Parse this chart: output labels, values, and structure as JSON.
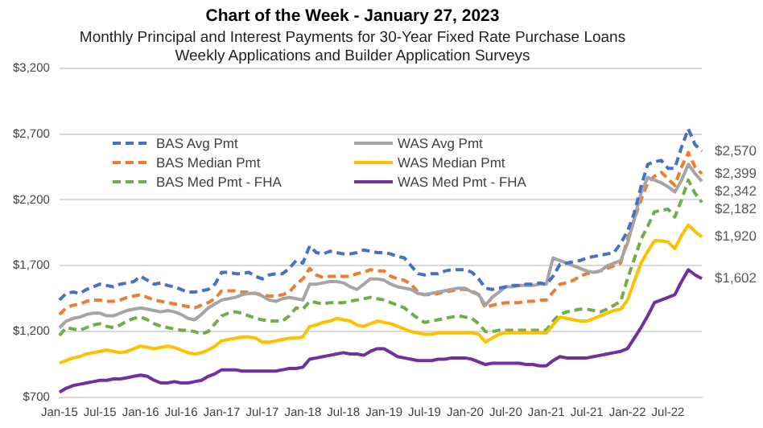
{
  "chart_data": {
    "type": "line",
    "title": "Chart of the Week - January 27, 2023",
    "subtitle": "Monthly Principal and Interest Payments for 30-Year Fixed Rate Purchase Loans\nWeekly Applications and Builder Application Surveys",
    "categories": [
      "Jan-15",
      null,
      null,
      null,
      null,
      null,
      "Jul-15",
      null,
      null,
      null,
      null,
      null,
      "Jan-16",
      null,
      null,
      null,
      null,
      null,
      "Jul-16",
      null,
      null,
      null,
      null,
      null,
      "Jan-17",
      null,
      null,
      null,
      null,
      null,
      "Jul-17",
      null,
      null,
      null,
      null,
      null,
      "Jan-18",
      null,
      null,
      null,
      null,
      null,
      "Jul-18",
      null,
      null,
      null,
      null,
      null,
      "Jan-19",
      null,
      null,
      null,
      null,
      null,
      "Jul-19",
      null,
      null,
      null,
      null,
      null,
      "Jan-20",
      null,
      null,
      null,
      null,
      null,
      "Jul-20",
      null,
      null,
      null,
      null,
      null,
      "Jan-21",
      null,
      null,
      null,
      null,
      null,
      "Jul-21",
      null,
      null,
      null,
      null,
      null,
      "Jan-22",
      null,
      null,
      null,
      null,
      null,
      "Jul-22",
      null,
      null,
      null,
      null,
      null
    ],
    "ylim": [
      700,
      3200
    ],
    "yticks": [
      {
        "value": 700,
        "label": "$700"
      },
      {
        "value": 1200,
        "label": "$1,200"
      },
      {
        "value": 1700,
        "label": "$1,700"
      },
      {
        "value": 2200,
        "label": "$2,200"
      },
      {
        "value": 2700,
        "label": "$2,700"
      },
      {
        "value": 3200,
        "label": "$3,200"
      }
    ],
    "grid": "y",
    "legend": "top",
    "marker": "none",
    "series": [
      {
        "name": "BAS Avg Pmt",
        "color": "#4472c4",
        "line_style": "dashed",
        "values": [
          1440,
          1490,
          1500,
          1490,
          1520,
          1540,
          1560,
          1550,
          1540,
          1560,
          1570,
          1580,
          1620,
          1590,
          1560,
          1570,
          1550,
          1540,
          1520,
          1500,
          1500,
          1510,
          1520,
          1560,
          1650,
          1650,
          1640,
          1640,
          1650,
          1620,
          1600,
          1630,
          1640,
          1640,
          1680,
          1740,
          1720,
          1850,
          1800,
          1790,
          1810,
          1800,
          1790,
          1790,
          1800,
          1820,
          1810,
          1800,
          1800,
          1790,
          1770,
          1760,
          1700,
          1640,
          1630,
          1640,
          1640,
          1660,
          1670,
          1670,
          1670,
          1650,
          1600,
          1530,
          1520,
          1530,
          1540,
          1550,
          1550,
          1560,
          1560,
          1570,
          1560,
          1620,
          1710,
          1720,
          1730,
          1740,
          1760,
          1770,
          1780,
          1790,
          1800,
          1870,
          1960,
          2100,
          2300,
          2470,
          2490,
          2500,
          2440,
          2440,
          2600,
          2740,
          2620,
          2570
        ],
        "value_labels": [
          null,
          null,
          null,
          null,
          null,
          null,
          null,
          null,
          null,
          null,
          null,
          null,
          null,
          null,
          null,
          null,
          null,
          null,
          null,
          null,
          null,
          null,
          null,
          null,
          null,
          null,
          null,
          null,
          null,
          null,
          null,
          null,
          null,
          null,
          null,
          null,
          null,
          null,
          null,
          null,
          null,
          null,
          null,
          null,
          null,
          null,
          null,
          null,
          null,
          null,
          null,
          null,
          null,
          null,
          null,
          null,
          null,
          null,
          null,
          null,
          null,
          null,
          null,
          null,
          null,
          null,
          null,
          null,
          null,
          null,
          null,
          null,
          null,
          null,
          null,
          null,
          null,
          null,
          null,
          null,
          null,
          null,
          null,
          null,
          null,
          null,
          null,
          null,
          null,
          null,
          null,
          null,
          null,
          null,
          null,
          "$2,570"
        ]
      },
      {
        "name": "WAS Avg Pmt",
        "color": "#a5a5a5",
        "line_style": "solid",
        "values": [
          1230,
          1280,
          1300,
          1310,
          1330,
          1340,
          1340,
          1320,
          1320,
          1340,
          1360,
          1370,
          1380,
          1370,
          1360,
          1350,
          1360,
          1350,
          1330,
          1300,
          1290,
          1330,
          1380,
          1410,
          1440,
          1450,
          1460,
          1480,
          1490,
          1490,
          1470,
          1440,
          1430,
          1450,
          1460,
          1450,
          1440,
          1560,
          1560,
          1570,
          1580,
          1580,
          1570,
          1540,
          1520,
          1560,
          1600,
          1600,
          1590,
          1560,
          1540,
          1530,
          1520,
          1490,
          1480,
          1490,
          1500,
          1510,
          1520,
          1530,
          1530,
          1500,
          1480,
          1400,
          1460,
          1500,
          1540,
          1540,
          1550,
          1550,
          1550,
          1560,
          1560,
          1760,
          1740,
          1720,
          1700,
          1680,
          1660,
          1650,
          1660,
          1700,
          1720,
          1740,
          1870,
          2050,
          2250,
          2370,
          2350,
          2330,
          2300,
          2260,
          2350,
          2470,
          2400,
          2342
        ],
        "value_labels": [
          null,
          null,
          null,
          null,
          null,
          null,
          null,
          null,
          null,
          null,
          null,
          null,
          null,
          null,
          null,
          null,
          null,
          null,
          null,
          null,
          null,
          null,
          null,
          null,
          null,
          null,
          null,
          null,
          null,
          null,
          null,
          null,
          null,
          null,
          null,
          null,
          null,
          null,
          null,
          null,
          null,
          null,
          null,
          null,
          null,
          null,
          null,
          null,
          null,
          null,
          null,
          null,
          null,
          null,
          null,
          null,
          null,
          null,
          null,
          null,
          null,
          null,
          null,
          null,
          null,
          null,
          null,
          null,
          null,
          null,
          null,
          null,
          null,
          null,
          null,
          null,
          null,
          null,
          null,
          null,
          null,
          null,
          null,
          null,
          null,
          null,
          null,
          null,
          null,
          null,
          null,
          null,
          null,
          null,
          null,
          "$2,342"
        ]
      },
      {
        "name": "BAS Median Pmt",
        "color": "#ed7d31",
        "line_style": "dashed",
        "values": [
          1330,
          1380,
          1400,
          1410,
          1430,
          1440,
          1440,
          1430,
          1430,
          1440,
          1460,
          1470,
          1480,
          1460,
          1440,
          1430,
          1420,
          1410,
          1400,
          1390,
          1380,
          1400,
          1420,
          1450,
          1510,
          1510,
          1510,
          1500,
          1500,
          1490,
          1480,
          1470,
          1470,
          1480,
          1500,
          1560,
          1600,
          1680,
          1630,
          1610,
          1620,
          1620,
          1620,
          1620,
          1640,
          1650,
          1670,
          1660,
          1660,
          1620,
          1600,
          1590,
          1560,
          1500,
          1480,
          1480,
          1490,
          1500,
          1510,
          1520,
          1520,
          1510,
          1480,
          1380,
          1400,
          1410,
          1420,
          1420,
          1420,
          1430,
          1430,
          1440,
          1440,
          1500,
          1560,
          1570,
          1590,
          1620,
          1640,
          1650,
          1660,
          1680,
          1700,
          1720,
          1900,
          2050,
          2200,
          2330,
          2380,
          2410,
          2360,
          2310,
          2450,
          2560,
          2450,
          2399
        ],
        "value_labels": [
          null,
          null,
          null,
          null,
          null,
          null,
          null,
          null,
          null,
          null,
          null,
          null,
          null,
          null,
          null,
          null,
          null,
          null,
          null,
          null,
          null,
          null,
          null,
          null,
          null,
          null,
          null,
          null,
          null,
          null,
          null,
          null,
          null,
          null,
          null,
          null,
          null,
          null,
          null,
          null,
          null,
          null,
          null,
          null,
          null,
          null,
          null,
          null,
          null,
          null,
          null,
          null,
          null,
          null,
          null,
          null,
          null,
          null,
          null,
          null,
          null,
          null,
          null,
          null,
          null,
          null,
          null,
          null,
          null,
          null,
          null,
          null,
          null,
          null,
          null,
          null,
          null,
          null,
          null,
          null,
          null,
          null,
          null,
          null,
          null,
          null,
          null,
          null,
          null,
          null,
          null,
          null,
          null,
          null,
          null,
          "$2,399"
        ]
      },
      {
        "name": "WAS Median Pmt",
        "color": "#ffc000",
        "line_style": "solid",
        "values": [
          960,
          980,
          1000,
          1010,
          1030,
          1040,
          1050,
          1060,
          1050,
          1040,
          1050,
          1070,
          1090,
          1080,
          1070,
          1080,
          1090,
          1080,
          1060,
          1040,
          1030,
          1040,
          1060,
          1090,
          1130,
          1140,
          1150,
          1160,
          1160,
          1150,
          1120,
          1120,
          1130,
          1140,
          1150,
          1150,
          1160,
          1240,
          1250,
          1270,
          1280,
          1300,
          1290,
          1280,
          1250,
          1240,
          1260,
          1280,
          1270,
          1260,
          1240,
          1220,
          1200,
          1190,
          1180,
          1180,
          1190,
          1190,
          1190,
          1190,
          1190,
          1190,
          1180,
          1120,
          1150,
          1180,
          1190,
          1190,
          1190,
          1190,
          1190,
          1190,
          1190,
          1250,
          1310,
          1300,
          1290,
          1280,
          1280,
          1300,
          1320,
          1340,
          1360,
          1370,
          1440,
          1580,
          1720,
          1810,
          1890,
          1890,
          1880,
          1830,
          1930,
          2010,
          1960,
          1920
        ],
        "value_labels": [
          null,
          null,
          null,
          null,
          null,
          null,
          null,
          null,
          null,
          null,
          null,
          null,
          null,
          null,
          null,
          null,
          null,
          null,
          null,
          null,
          null,
          null,
          null,
          null,
          null,
          null,
          null,
          null,
          null,
          null,
          null,
          null,
          null,
          null,
          null,
          null,
          null,
          null,
          null,
          null,
          null,
          null,
          null,
          null,
          null,
          null,
          null,
          null,
          null,
          null,
          null,
          null,
          null,
          null,
          null,
          null,
          null,
          null,
          null,
          null,
          null,
          null,
          null,
          null,
          null,
          null,
          null,
          null,
          null,
          null,
          null,
          null,
          null,
          null,
          null,
          null,
          null,
          null,
          null,
          null,
          null,
          null,
          null,
          null,
          null,
          null,
          null,
          null,
          null,
          null,
          null,
          null,
          null,
          null,
          null,
          "$1,920"
        ]
      },
      {
        "name": "BAS Med Pmt - FHA",
        "color": "#70ad47",
        "line_style": "dashed",
        "values": [
          1170,
          1230,
          1220,
          1210,
          1230,
          1250,
          1260,
          1240,
          1230,
          1250,
          1280,
          1300,
          1310,
          1290,
          1260,
          1240,
          1230,
          1220,
          1210,
          1210,
          1200,
          1180,
          1200,
          1260,
          1320,
          1340,
          1350,
          1340,
          1320,
          1300,
          1290,
          1280,
          1280,
          1280,
          1320,
          1380,
          1370,
          1430,
          1420,
          1410,
          1420,
          1420,
          1420,
          1430,
          1440,
          1450,
          1460,
          1450,
          1440,
          1420,
          1400,
          1380,
          1340,
          1300,
          1270,
          1280,
          1290,
          1300,
          1310,
          1320,
          1310,
          1300,
          1260,
          1200,
          1200,
          1210,
          1210,
          1210,
          1210,
          1210,
          1210,
          1210,
          1210,
          1280,
          1330,
          1350,
          1360,
          1370,
          1370,
          1360,
          1350,
          1370,
          1400,
          1430,
          1600,
          1750,
          1900,
          2000,
          2110,
          2120,
          2130,
          2070,
          2200,
          2350,
          2250,
          2182
        ],
        "value_labels": [
          null,
          null,
          null,
          null,
          null,
          null,
          null,
          null,
          null,
          null,
          null,
          null,
          null,
          null,
          null,
          null,
          null,
          null,
          null,
          null,
          null,
          null,
          null,
          null,
          null,
          null,
          null,
          null,
          null,
          null,
          null,
          null,
          null,
          null,
          null,
          null,
          null,
          null,
          null,
          null,
          null,
          null,
          null,
          null,
          null,
          null,
          null,
          null,
          null,
          null,
          null,
          null,
          null,
          null,
          null,
          null,
          null,
          null,
          null,
          null,
          null,
          null,
          null,
          null,
          null,
          null,
          null,
          null,
          null,
          null,
          null,
          null,
          null,
          null,
          null,
          null,
          null,
          null,
          null,
          null,
          null,
          null,
          null,
          null,
          null,
          null,
          null,
          null,
          null,
          null,
          null,
          null,
          null,
          null,
          null,
          "$2,182"
        ]
      },
      {
        "name": "WAS Med Pmt - FHA",
        "color": "#7030a0",
        "line_style": "solid",
        "values": [
          740,
          770,
          790,
          800,
          810,
          820,
          830,
          830,
          840,
          840,
          850,
          860,
          870,
          860,
          830,
          810,
          810,
          820,
          810,
          810,
          820,
          830,
          860,
          880,
          910,
          910,
          910,
          900,
          900,
          900,
          900,
          900,
          900,
          910,
          920,
          920,
          930,
          990,
          1000,
          1010,
          1020,
          1030,
          1040,
          1030,
          1030,
          1020,
          1050,
          1070,
          1070,
          1040,
          1010,
          1000,
          990,
          980,
          980,
          980,
          990,
          990,
          1000,
          1000,
          1000,
          990,
          970,
          950,
          960,
          960,
          960,
          960,
          960,
          950,
          950,
          940,
          940,
          980,
          1010,
          1000,
          1000,
          1000,
          1000,
          1010,
          1020,
          1030,
          1040,
          1050,
          1070,
          1150,
          1230,
          1320,
          1420,
          1440,
          1460,
          1480,
          1580,
          1670,
          1630,
          1602
        ],
        "value_labels": [
          null,
          null,
          null,
          null,
          null,
          null,
          null,
          null,
          null,
          null,
          null,
          null,
          null,
          null,
          null,
          null,
          null,
          null,
          null,
          null,
          null,
          null,
          null,
          null,
          null,
          null,
          null,
          null,
          null,
          null,
          null,
          null,
          null,
          null,
          null,
          null,
          null,
          null,
          null,
          null,
          null,
          null,
          null,
          null,
          null,
          null,
          null,
          null,
          null,
          null,
          null,
          null,
          null,
          null,
          null,
          null,
          null,
          null,
          null,
          null,
          null,
          null,
          null,
          null,
          null,
          null,
          null,
          null,
          null,
          null,
          null,
          null,
          null,
          null,
          null,
          null,
          null,
          null,
          null,
          null,
          null,
          null,
          null,
          null,
          null,
          null,
          null,
          null,
          null,
          null,
          null,
          null,
          null,
          null,
          null,
          "$1,602"
        ]
      }
    ]
  }
}
